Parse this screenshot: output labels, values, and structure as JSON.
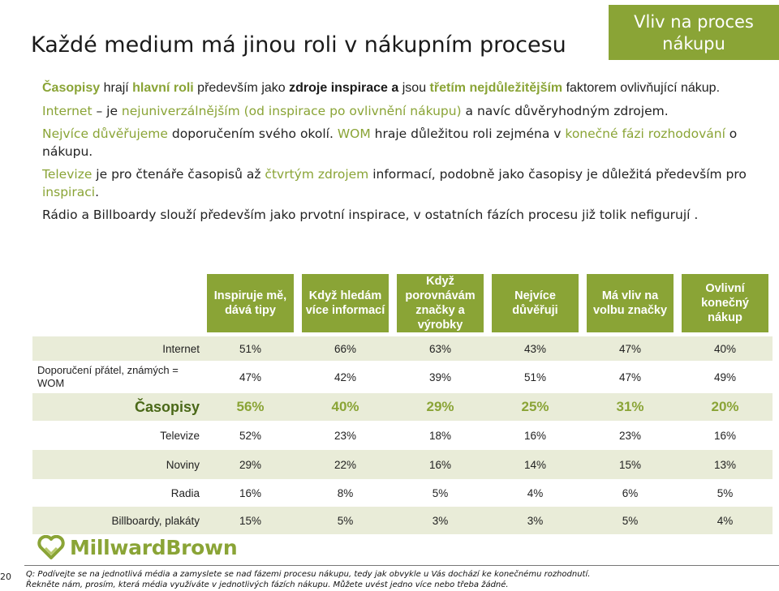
{
  "header": {
    "title": "Každé medium má jinou roli v nákupním procesu",
    "badge": "Vliv na proces nákupu"
  },
  "bullets": {
    "b1": {
      "s1": "Časopisy",
      "s2": " hrají ",
      "s3": "hlavní roli",
      "s4": " především jako ",
      "s5": "zdroje inspirace a",
      "s6": " jsou ",
      "s7": "třetím nejdůležitějším",
      "s8": " faktorem ovlivňující nákup."
    },
    "b2": {
      "s1": "Internet",
      "s2": " – je ",
      "s3": "nejuniverzálnějším (od inspirace po ovlivnění nákupu)",
      "s4": " a navíc důvěryhodným zdrojem."
    },
    "b3": {
      "s1": "Nejvíce důvěřujeme",
      "s2": " doporučením svého okolí. ",
      "s3": "WOM",
      "s4": " hraje důležitou roli zejména v ",
      "s5": "konečné fázi rozhodování",
      "s6": " o nákupu."
    },
    "b4": {
      "s1": "Televize",
      "s2": " je pro čtenáře časopisů až ",
      "s3": "čtvrtým zdrojem",
      "s4": " informací, podobně jako časopisy je důležitá především pro ",
      "s5": "inspiraci",
      "s6": "."
    },
    "b5": {
      "s1": "Rádio a Billboardy slouží především jako prvotní inspirace, v ostatních fázích procesu již tolik nefigurují ."
    }
  },
  "table": {
    "headers": [
      "Inspiruje mě, dává tipy",
      "Když hledám více informací",
      "Když porovnávám značky a výrobky",
      "Nejvíce důvěřuji",
      "Má vliv na volbu značky",
      "Ovlivní konečný nákup"
    ],
    "rows": [
      {
        "label": "Internet",
        "values": [
          "51%",
          "66%",
          "63%",
          "43%",
          "47%",
          "40%"
        ]
      },
      {
        "label": "Doporučení přátel, známých = WOM",
        "values": [
          "47%",
          "42%",
          "39%",
          "51%",
          "47%",
          "49%"
        ]
      },
      {
        "label": "Časopisy",
        "values": [
          "56%",
          "40%",
          "29%",
          "25%",
          "31%",
          "20%"
        ]
      },
      {
        "label": "Televize",
        "values": [
          "52%",
          "23%",
          "18%",
          "16%",
          "23%",
          "16%"
        ]
      },
      {
        "label": "Noviny",
        "values": [
          "29%",
          "22%",
          "16%",
          "14%",
          "15%",
          "13%"
        ]
      },
      {
        "label": "Radia",
        "values": [
          "16%",
          "8%",
          "5%",
          "4%",
          "6%",
          "5%"
        ]
      },
      {
        "label": "Billboardy, plakáty",
        "values": [
          "15%",
          "5%",
          "3%",
          "3%",
          "5%",
          "4%"
        ]
      }
    ]
  },
  "footer": {
    "logo": "MillwardBrown",
    "page": "20",
    "q1": "Q: Podívejte se na jednotlivá média a zamyslete se nad fázemi procesu nákupu, tedy jak obvykle u Vás dochází ke konečnému rozhodnutí.",
    "q2": "Řekněte nám, prosím, která média využíváte v jednotlivých fázích nákupu. Můžete uvést jedno více nebo třeba žádné."
  },
  "colors": {
    "accent": "#8aa436",
    "row_tint": "#e9ecd8"
  },
  "icons": {
    "logo_mark": "heart-logo-icon"
  }
}
